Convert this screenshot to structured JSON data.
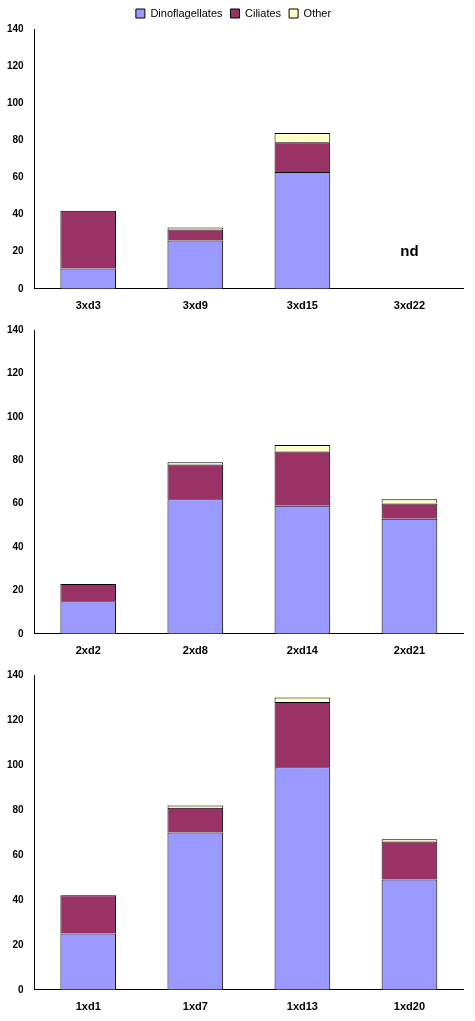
{
  "chart_data": [
    {
      "type": "bar",
      "stacked": true,
      "legend": "top",
      "grid": false,
      "categories": [
        "3xd3",
        "3xd9",
        "3xd15",
        "3xd22"
      ],
      "series": [
        {
          "name": "Dinoflagellates",
          "color": "#9999ff",
          "values": [
            11,
            26,
            63,
            null
          ]
        },
        {
          "name": "Ciliates",
          "color": "#993366",
          "values": [
            31,
            6,
            16,
            null
          ]
        },
        {
          "name": "Other",
          "color": "#ffffcc",
          "values": [
            0,
            1,
            5,
            null
          ]
        }
      ],
      "ylim": [
        0,
        140
      ],
      "yticks": [
        0,
        20,
        40,
        60,
        80,
        100,
        120,
        140
      ],
      "annotations": [
        {
          "text": "nd",
          "category": "3xd22",
          "y": 20
        }
      ]
    },
    {
      "type": "bar",
      "stacked": true,
      "grid": false,
      "categories": [
        "2xd2",
        "2xd8",
        "2xd14",
        "2xd21"
      ],
      "series": [
        {
          "name": "Dinoflagellates",
          "color": "#9999ff",
          "values": [
            15,
            62,
            59,
            53
          ]
        },
        {
          "name": "Ciliates",
          "color": "#993366",
          "values": [
            8,
            16,
            25,
            7
          ]
        },
        {
          "name": "Other",
          "color": "#ffffcc",
          "values": [
            0,
            1,
            3,
            2
          ]
        }
      ],
      "ylim": [
        0,
        140
      ],
      "yticks": [
        0,
        20,
        40,
        60,
        80,
        100,
        120,
        140
      ]
    },
    {
      "type": "bar",
      "stacked": true,
      "grid": false,
      "categories": [
        "1xd1",
        "1xd7",
        "1xd13",
        "1xd20"
      ],
      "series": [
        {
          "name": "Dinoflagellates",
          "color": "#9999ff",
          "values": [
            25,
            70,
            99,
            49
          ]
        },
        {
          "name": "Ciliates",
          "color": "#993366",
          "values": [
            17,
            11,
            29,
            17
          ]
        },
        {
          "name": "Other",
          "color": "#ffffcc",
          "values": [
            0,
            1,
            2,
            1
          ]
        }
      ],
      "ylim": [
        0,
        140
      ],
      "yticks": [
        0,
        20,
        40,
        60,
        80,
        100,
        120,
        140
      ]
    }
  ]
}
